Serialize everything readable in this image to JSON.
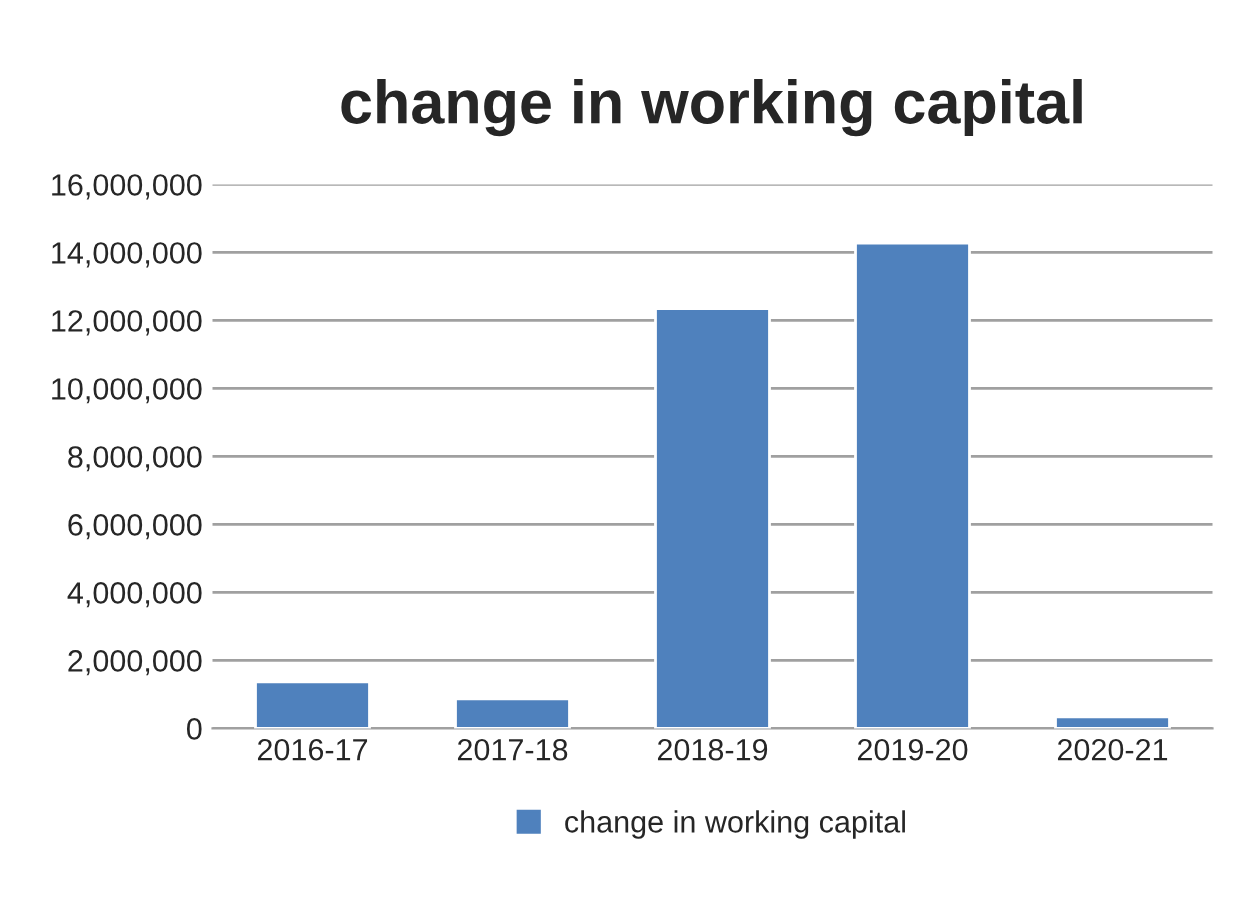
{
  "chart_data": {
    "type": "bar",
    "title": "change in working capital",
    "categories": [
      "2016-17",
      "2017-18",
      "2018-19",
      "2019-20",
      "2020-21"
    ],
    "series": [
      {
        "name": "change in working capital",
        "color": "#4f81bd",
        "values": [
          1370000,
          870000,
          12350000,
          14270000,
          340000
        ]
      }
    ],
    "ylim": [
      0,
      16000000
    ],
    "yticks": [
      {
        "value": 0,
        "label": "0"
      },
      {
        "value": 2000000,
        "label": "2,000,000"
      },
      {
        "value": 4000000,
        "label": "4,000,000"
      },
      {
        "value": 6000000,
        "label": "6,000,000"
      },
      {
        "value": 8000000,
        "label": "8,000,000"
      },
      {
        "value": 10000000,
        "label": "10,000,000"
      },
      {
        "value": 12000000,
        "label": "12,000,000"
      },
      {
        "value": 14000000,
        "label": "14,000,000"
      },
      {
        "value": 16000000,
        "label": "16,000,000"
      }
    ],
    "grid": "y",
    "legend": "bottom"
  }
}
